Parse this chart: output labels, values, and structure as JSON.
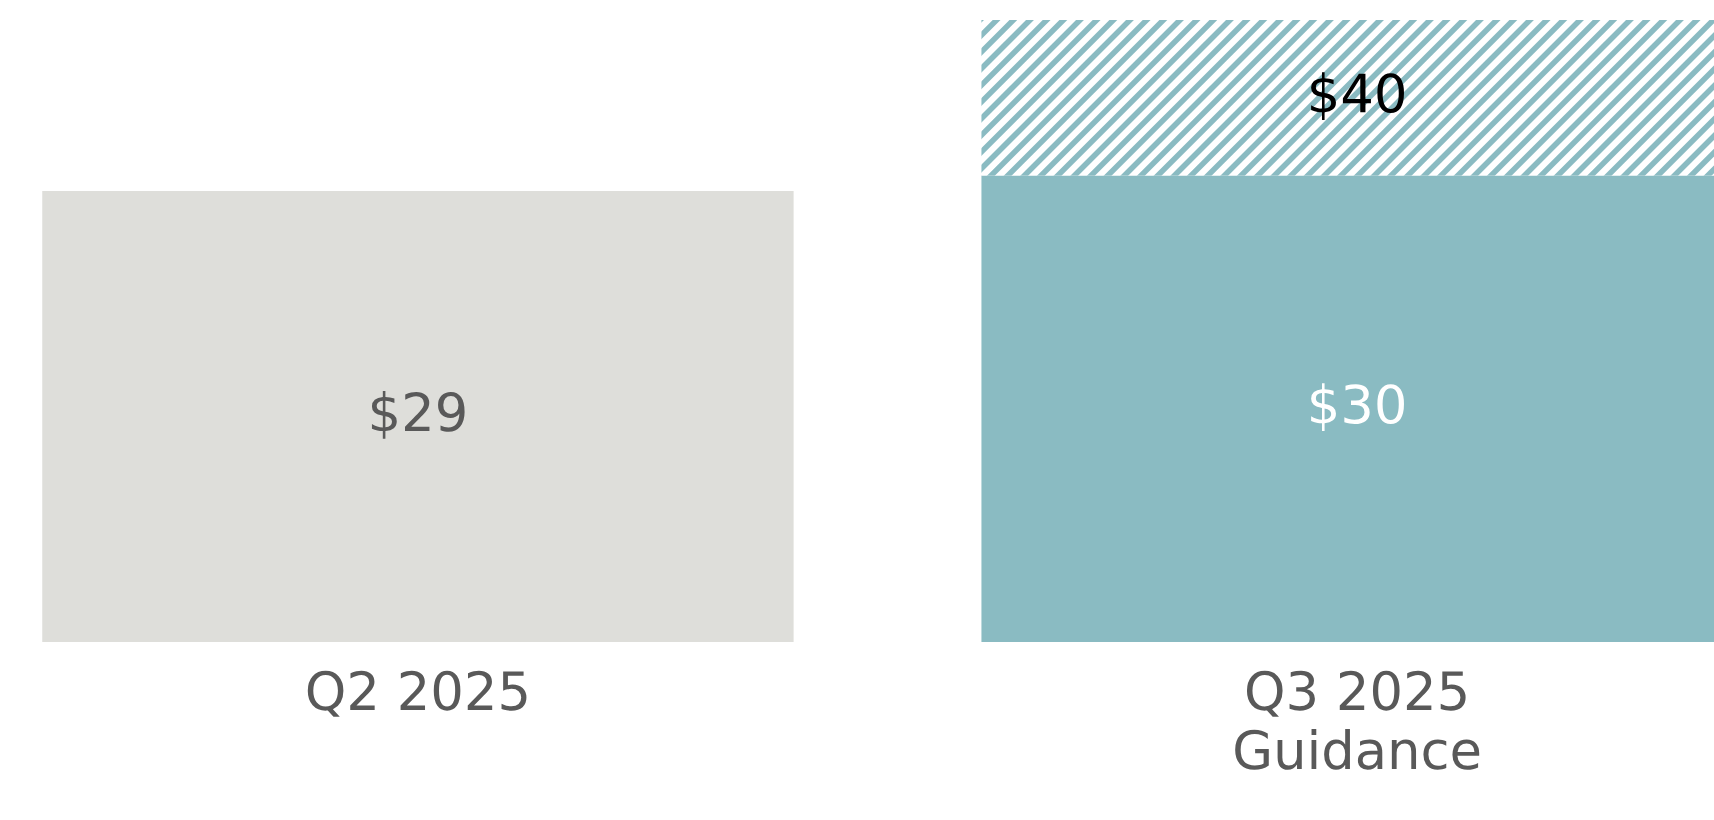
{
  "chart_data": {
    "type": "bar",
    "stacked": true,
    "categories": [
      "Q2 2025",
      "Q3 2025\nGuidance"
    ],
    "series": [
      {
        "colors": [
          "#dededa",
          "#8abbc2"
        ],
        "values": [
          29,
          30
        ],
        "value_labels": [
          "$29",
          "$30"
        ]
      },
      {
        "color": "#8abbc2",
        "values": [
          null,
          10
        ]
      }
    ],
    "totals": [
      null,
      "$40"
    ]
  }
}
